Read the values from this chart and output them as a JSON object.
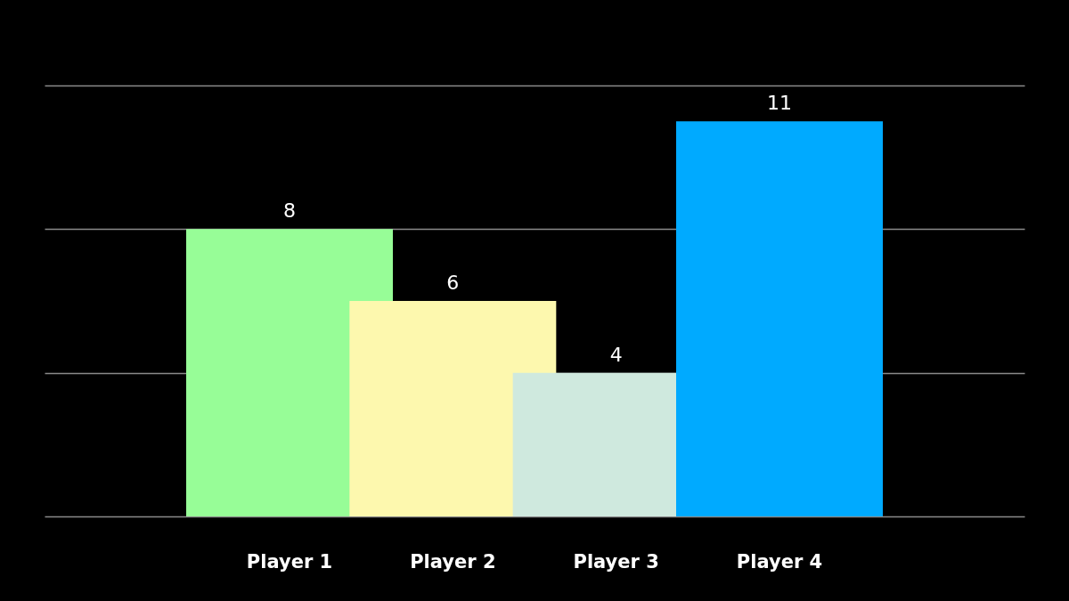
{
  "chart_data": {
    "type": "bar",
    "categories": [
      "Player 1",
      "Player 2",
      "Player 3",
      "Player 4"
    ],
    "values": [
      8,
      6,
      4,
      11
    ],
    "colors": [
      "#97fd97",
      "#fdf8ae",
      "#cfe9de",
      "#00aaff"
    ],
    "ylim": [
      0,
      12
    ],
    "yticks": [
      {
        "value": 0,
        "label": null
      },
      {
        "value": 4,
        "label": null
      },
      {
        "value": 8,
        "label": null
      },
      {
        "value": 12,
        "label": null
      }
    ],
    "grid": "y",
    "data_labels": true,
    "tick_labels": "x"
  }
}
